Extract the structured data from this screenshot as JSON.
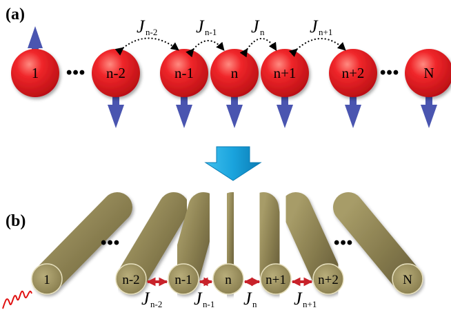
{
  "panel_a": {
    "label": "(a)",
    "spheres": [
      {
        "text": "1",
        "spin": "up"
      },
      {
        "text": "n-2",
        "spin": "down"
      },
      {
        "text": "n-1",
        "spin": "down"
      },
      {
        "text": "n",
        "spin": "down"
      },
      {
        "text": "n+1",
        "spin": "down"
      },
      {
        "text": "n+2",
        "spin": "down"
      },
      {
        "text": "N",
        "spin": "down"
      }
    ],
    "couplings": [
      {
        "symbol": "J",
        "sub": "n-2"
      },
      {
        "symbol": "J",
        "sub": "n-1"
      },
      {
        "symbol": "J",
        "sub": "n"
      },
      {
        "symbol": "J",
        "sub": "n+1"
      }
    ],
    "ellipsis": "•••"
  },
  "panel_b": {
    "label": "(b)",
    "rods": [
      {
        "text": "1"
      },
      {
        "text": "n-2"
      },
      {
        "text": "n-1"
      },
      {
        "text": "n"
      },
      {
        "text": "n+1"
      },
      {
        "text": "n+2"
      },
      {
        "text": "N"
      }
    ],
    "couplings": [
      {
        "symbol": "J",
        "sub": "n-2"
      },
      {
        "symbol": "J",
        "sub": "n-1"
      },
      {
        "symbol": "J",
        "sub": "n"
      },
      {
        "symbol": "J",
        "sub": "n+1"
      }
    ],
    "ellipsis": "•••"
  },
  "colors": {
    "sphere": "#e8141b",
    "spin_arrow": "#4a55b0",
    "transition_arrow": "#1aa3dd",
    "rod": "#8c8152",
    "coupling_arrow": "#c8222a",
    "excitation_wave": "#e01010"
  }
}
